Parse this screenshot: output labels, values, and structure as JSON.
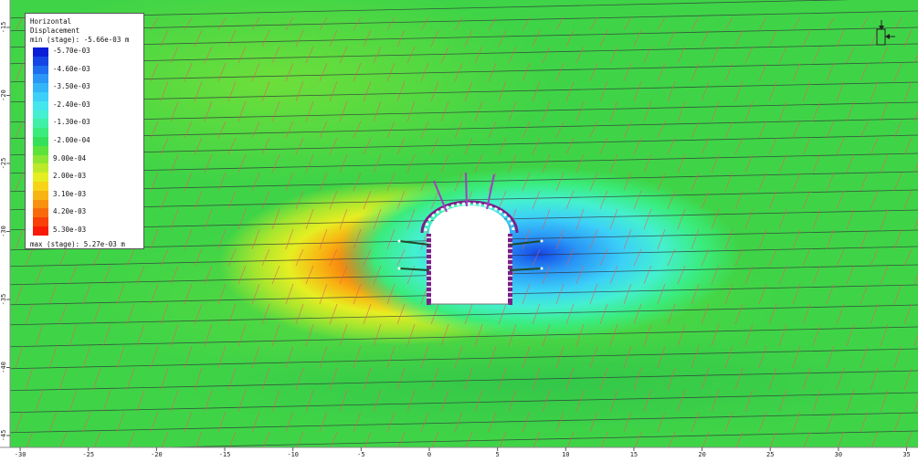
{
  "legend": {
    "title_line1": "Horizontal",
    "title_line2": "Displacement",
    "min_text": "min (stage): -5.66e-03 m",
    "max_text": "max (stage): 5.27e-03 m",
    "entries": [
      {
        "label": "-5.70e-03",
        "color": "#0a1ed8"
      },
      {
        "label": "",
        "color": "#1446e6"
      },
      {
        "label": "-4.60e-03",
        "color": "#1e6ef0"
      },
      {
        "label": "",
        "color": "#2a96f6"
      },
      {
        "label": "-3.50e-03",
        "color": "#33b6f8"
      },
      {
        "label": "",
        "color": "#3cd0f8"
      },
      {
        "label": "-2.40e-03",
        "color": "#44e6ee"
      },
      {
        "label": "",
        "color": "#44f0d0"
      },
      {
        "label": "-1.30e-03",
        "color": "#40f0a6"
      },
      {
        "label": "",
        "color": "#3aec7c"
      },
      {
        "label": "-2.00e-04",
        "color": "#34e05a"
      },
      {
        "label": "",
        "color": "#5ce23a"
      },
      {
        "label": "9.00e-04",
        "color": "#8ce632"
      },
      {
        "label": "",
        "color": "#bcea2a"
      },
      {
        "label": "2.00e-03",
        "color": "#e6ee22"
      },
      {
        "label": "",
        "color": "#f8d418"
      },
      {
        "label": "3.10e-03",
        "color": "#f8b412"
      },
      {
        "label": "",
        "color": "#f89010"
      },
      {
        "label": "4.20e-03",
        "color": "#f86a0c"
      },
      {
        "label": "",
        "color": "#f84008"
      },
      {
        "label": "5.30e-03",
        "color": "#f81a06"
      }
    ]
  },
  "x_axis": {
    "ticks": [
      -30,
      -25,
      -20,
      -15,
      -10,
      -5,
      0,
      5,
      10,
      15,
      20,
      25,
      30,
      35
    ]
  },
  "y_axis": {
    "ticks": [
      -15,
      -20,
      -25,
      -30,
      -35,
      -40,
      -45
    ]
  },
  "colors": {
    "background_green": "#3fd447",
    "rock_joint": "#e0605a",
    "horizontal_joint": "#2e2e3a",
    "bolt": "#a13fbf",
    "lining": "#7a1f8a",
    "excavation": "#ffffff"
  }
}
